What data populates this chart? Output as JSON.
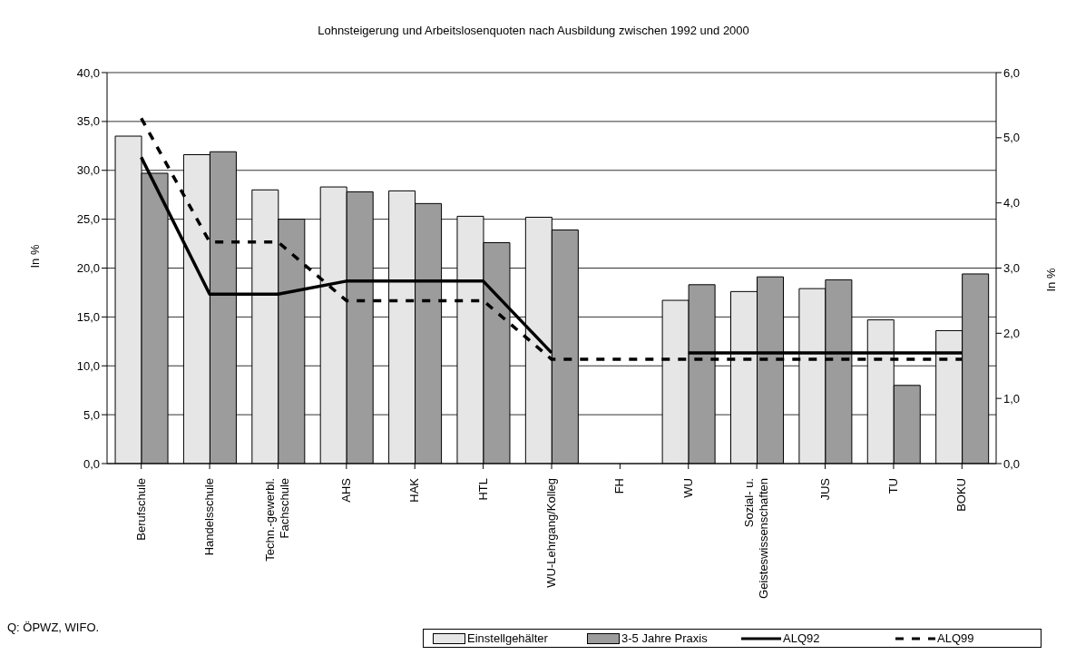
{
  "chart_data": {
    "type": "bar",
    "title": "Lohnsteigerung und Arbeitslosenquoten nach Ausbildung zwischen 1992 und 2000",
    "categories": [
      "Berufschule",
      "Handelsschule",
      "Techn.-gewerbl.\nFachschule",
      "AHS",
      "HAK",
      "HTL",
      "WU-Lehrgang/Kolleg",
      "FH",
      "WU",
      "Sozial- u.\nGeisteswissenschaften",
      "JUS",
      "TU",
      "BOKU"
    ],
    "series": [
      {
        "name": "Einstellgehälter",
        "color": "#e6e6e6",
        "values": [
          33.5,
          31.6,
          28.0,
          28.3,
          27.9,
          25.3,
          25.2,
          null,
          16.7,
          17.6,
          17.9,
          14.7,
          13.6
        ]
      },
      {
        "name": "3-5 Jahre Praxis",
        "color": "#9c9c9c",
        "values": [
          29.7,
          31.9,
          25.0,
          27.8,
          26.6,
          22.6,
          23.9,
          null,
          18.3,
          19.1,
          18.8,
          8.0,
          19.4
        ]
      },
      {
        "name": "ALQ92",
        "type": "line",
        "axis": "y2",
        "color": "#000000",
        "line_style": "solid",
        "values": [
          4.7,
          2.6,
          2.6,
          2.8,
          2.8,
          2.8,
          1.7,
          null,
          1.7,
          1.7,
          1.7,
          1.7,
          1.7
        ]
      },
      {
        "name": "ALQ99",
        "type": "line",
        "axis": "y2",
        "color": "#000000",
        "line_style": "dashed",
        "values": [
          5.3,
          3.4,
          3.4,
          2.5,
          2.5,
          2.5,
          1.6,
          1.6,
          1.6,
          1.6,
          1.6,
          1.6,
          1.6
        ]
      }
    ],
    "ylabel": "In %",
    "y2label": "In %",
    "ylim": [
      0,
      40
    ],
    "yticks": [
      {
        "value": 0,
        "label": "0,0"
      },
      {
        "value": 5,
        "label": "5,0"
      },
      {
        "value": 10,
        "label": "10,0"
      },
      {
        "value": 15,
        "label": "15,0"
      },
      {
        "value": 20,
        "label": "20,0"
      },
      {
        "value": 25,
        "label": "25,0"
      },
      {
        "value": 30,
        "label": "30,0"
      },
      {
        "value": 35,
        "label": "35,0"
      },
      {
        "value": 40,
        "label": "40,0"
      }
    ],
    "y2lim": [
      0,
      6
    ],
    "y2ticks": [
      {
        "value": 0,
        "label": "0,0"
      },
      {
        "value": 1,
        "label": "1,0"
      },
      {
        "value": 2,
        "label": "2,0"
      },
      {
        "value": 3,
        "label": "3,0"
      },
      {
        "value": 4,
        "label": "4,0"
      },
      {
        "value": 5,
        "label": "5,0"
      },
      {
        "value": 6,
        "label": "6,0"
      }
    ],
    "grid": "y",
    "legend": "bottom right",
    "marker": "none",
    "annotations": [
      "Q: ÖPWZ, WIFO."
    ]
  }
}
